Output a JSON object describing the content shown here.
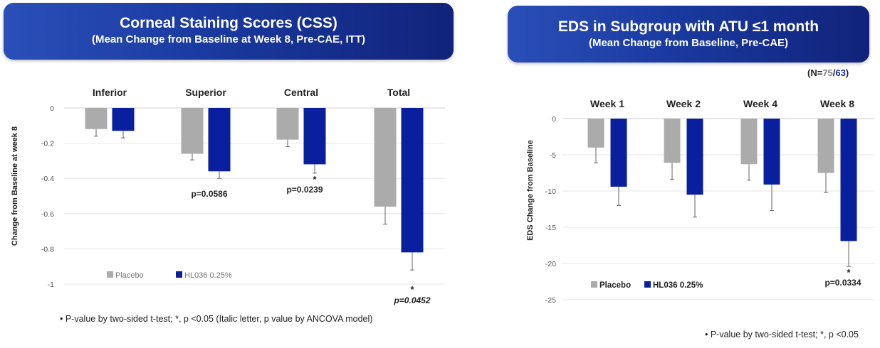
{
  "left_panel": {
    "title": "Corneal Staining Scores (CSS)",
    "subtitle": "(Mean Change from Baseline at Week 8, Pre-CAE, ITT)",
    "footnote": "• P-value by two-sided t-test; *, p <0.05 (Italic letter, p value by ANCOVA model)"
  },
  "right_panel": {
    "title": "EDS in Subgroup with ATU ≤1 month",
    "subtitle": "(Mean Change from Baseline, Pre-CAE)",
    "n_open": "(N=",
    "n_placebo": "75",
    "n_sep": "/",
    "n_hl": "63",
    "n_close": ")",
    "footnote": "• P-value by two-sided t-test; *, p <0.05"
  },
  "colors": {
    "placebo": "#ababab",
    "hl036": "#0a1f9e",
    "banner": "#1a3aa0",
    "n_placebo": "#7f7f7f",
    "n_hl": "#1a2b9a"
  },
  "chart_data": [
    {
      "type": "bar",
      "title": "",
      "ylabel": "Change from Baseline at week 8",
      "categories": [
        "Inferior",
        "Superior",
        "Central",
        "Total"
      ],
      "series": [
        {
          "name": "Placebo",
          "values": [
            -0.12,
            -0.26,
            -0.18,
            -0.56
          ],
          "error": [
            0.04,
            0.035,
            0.04,
            0.1
          ]
        },
        {
          "name": "HL036 0.25%",
          "values": [
            -0.13,
            -0.36,
            -0.32,
            -0.82
          ],
          "error": [
            0.04,
            0.04,
            0.05,
            0.1
          ]
        }
      ],
      "ylim": [
        -1,
        0
      ],
      "yticks": [
        0,
        -0.2,
        -0.4,
        -0.6,
        -0.8,
        -1
      ],
      "ytick_labels": [
        "0",
        "-0.2",
        "-0.4",
        "-0.6",
        "-0.8",
        "-1"
      ],
      "annotations": [
        {
          "category": "Superior",
          "star": "",
          "text": "p=0.0586",
          "italic": false
        },
        {
          "category": "Central",
          "star": "*",
          "text": "p=0.0239",
          "italic": false
        },
        {
          "category": "Total",
          "star": "*",
          "text": "p=0.0452",
          "italic": true
        }
      ],
      "legend": "bottom-left",
      "grid": true
    },
    {
      "type": "bar",
      "title": "",
      "ylabel": "EDS Change from Baseline",
      "categories": [
        "Week 1",
        "Week 2",
        "Week 4",
        "Week 8"
      ],
      "series": [
        {
          "name": "Placebo",
          "values": [
            -4.0,
            -6.1,
            -6.3,
            -7.5
          ],
          "error": [
            2.1,
            2.3,
            2.2,
            2.7
          ]
        },
        {
          "name": "HL036 0.25%",
          "values": [
            -9.4,
            -10.5,
            -9.1,
            -16.9
          ],
          "error": [
            2.6,
            3.1,
            3.6,
            3.5
          ]
        }
      ],
      "ylim": [
        -25,
        0
      ],
      "yticks": [
        0,
        -5,
        -10,
        -15,
        -20,
        -25
      ],
      "ytick_labels": [
        "0",
        "-5",
        "-10",
        "-15",
        "-20",
        "-25"
      ],
      "annotations": [
        {
          "category": "Week 8",
          "star": "*",
          "text": "p=0.0334",
          "italic": false
        }
      ],
      "legend": "bottom-left",
      "grid": true
    }
  ]
}
